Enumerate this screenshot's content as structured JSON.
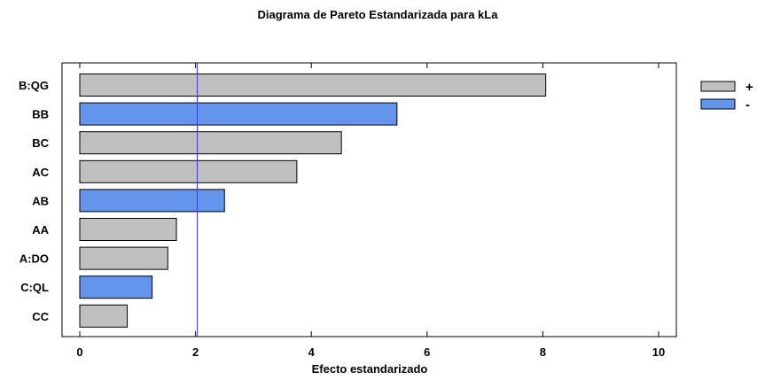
{
  "chart_data": {
    "type": "bar",
    "orientation": "horizontal",
    "title": "Diagrama de Pareto Estandarizada para kLa",
    "xlabel": "Efecto estandarizado",
    "ylabel": "",
    "xlim": [
      0,
      10
    ],
    "x_ticks": [
      "0",
      "2",
      "4",
      "6",
      "8",
      "10"
    ],
    "categories": [
      "B:QG",
      "BB",
      "BC",
      "AC",
      "AB",
      "AA",
      "A:DO",
      "C:QL",
      "CC"
    ],
    "values": [
      8.05,
      5.48,
      4.52,
      3.75,
      2.5,
      1.67,
      1.52,
      1.25,
      0.82
    ],
    "signs": [
      "+",
      "-",
      "+",
      "+",
      "-",
      "+",
      "+",
      "-",
      "+"
    ],
    "reference_line": 2.03,
    "legend": [
      {
        "label": "+",
        "color": "#c0c0c0"
      },
      {
        "label": "-",
        "color": "#6495ed"
      }
    ],
    "legend_position": "top-right",
    "grid": false
  }
}
